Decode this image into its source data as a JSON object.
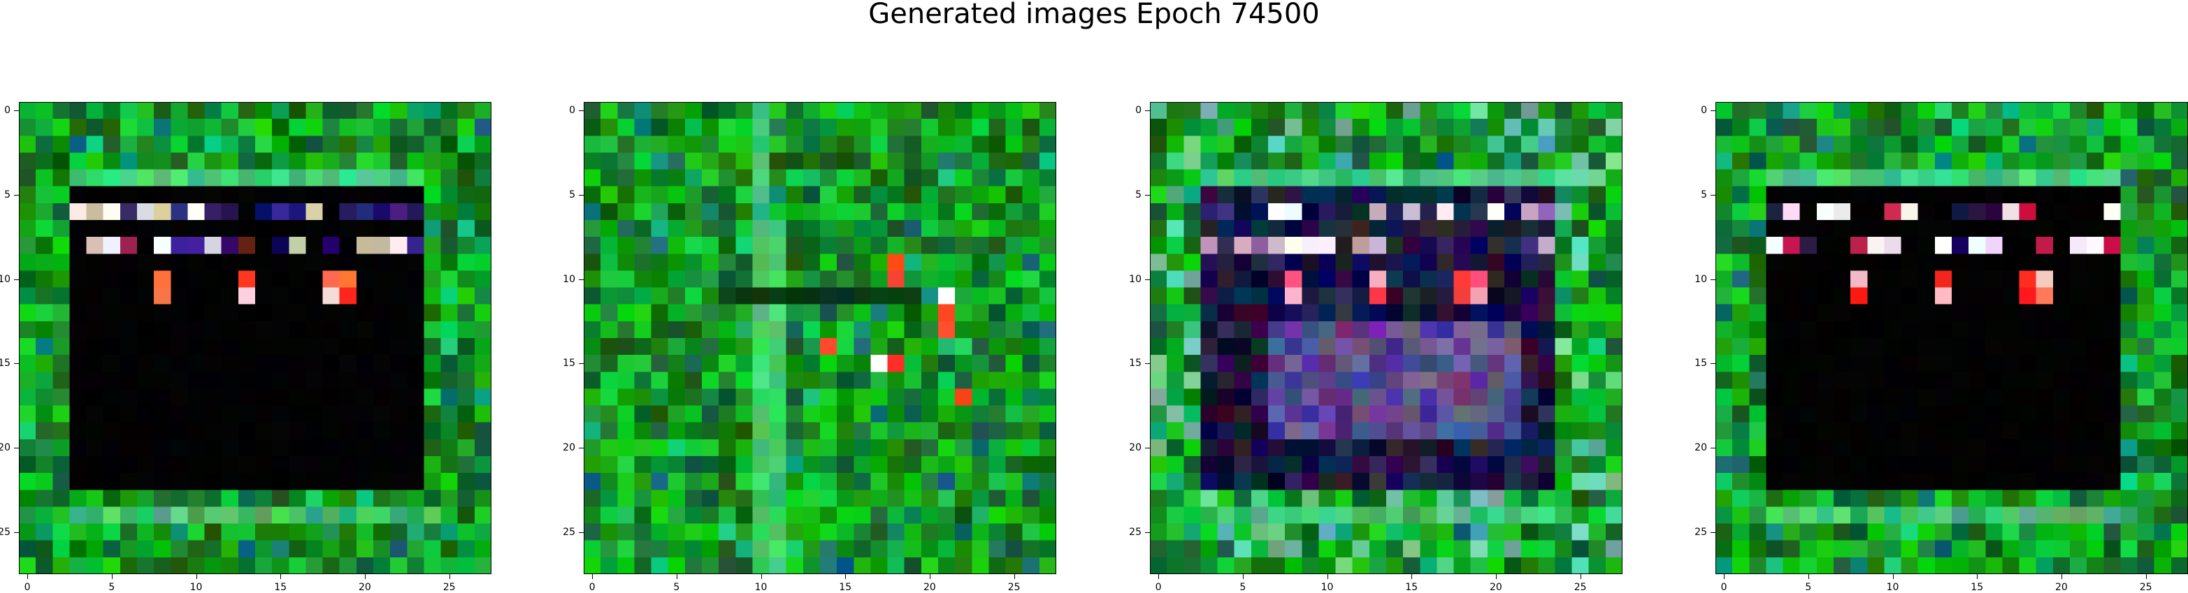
{
  "title": "Generated images Epoch 74500",
  "tick_labels": [
    "0",
    "5",
    "10",
    "15",
    "20",
    "25"
  ],
  "tick_values": [
    0,
    5,
    10,
    15,
    20,
    25
  ],
  "grid_size": 28,
  "panels": [
    {
      "name": "generated-image-1",
      "pattern": "frame-board",
      "border_color": "#1f8a3a",
      "inner_color": "#020203",
      "band_colors": [
        "#e8e4e8",
        "#141060",
        "#b02a58",
        "#ffffff",
        "#2a1870",
        "#cfc7a0",
        "#6a2a10",
        "#ffffff",
        "#3a2c90",
        "#c8c0a8"
      ],
      "hot_colors": [
        "#ff3018",
        "#ff7040",
        "#ffd0d0"
      ]
    },
    {
      "name": "generated-image-2",
      "pattern": "noise-green",
      "border_color": "#1d8c34",
      "inner_color": "#1a7a30",
      "band_colors": [
        "#40d070",
        "#2aa050"
      ],
      "hot_colors": [
        "#ff4020",
        "#ffa060",
        "#ffffff"
      ]
    },
    {
      "name": "generated-image-3",
      "pattern": "frame-purple",
      "border_color": "#2a9a60",
      "inner_color": "#1a1a40",
      "band_colors": [
        "#c8b0d8",
        "#ffffff",
        "#403070",
        "#d0a0b0",
        "#8070b0",
        "#ffffff"
      ],
      "hot_colors": [
        "#ff5080",
        "#ffb0c0",
        "#ff3040"
      ]
    },
    {
      "name": "generated-image-4",
      "pattern": "frame-board",
      "border_color": "#1c8e1c",
      "inner_color": "#020202",
      "band_colors": [
        "#f0e8f0",
        "#201050",
        "#ffffff",
        "#c02050",
        "#ffffff",
        "#e0d8e8"
      ],
      "hot_colors": [
        "#ff2020",
        "#ff8060",
        "#ffc0c0"
      ]
    }
  ]
}
